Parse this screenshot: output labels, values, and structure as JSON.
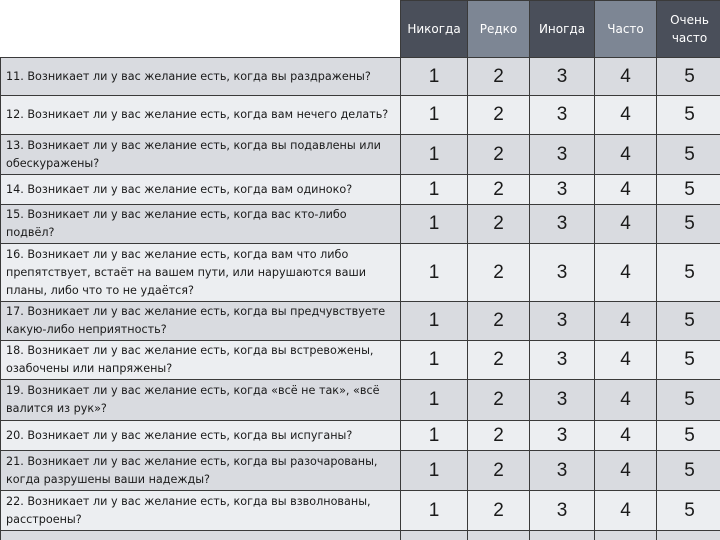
{
  "header": {
    "columns": [
      "Никогда",
      "Редко",
      "Иногда",
      "Часто",
      "Очень часто"
    ]
  },
  "rows": [
    {
      "question": "11. Возникает ли у вас желание есть, когда вы раздражены?",
      "values": [
        "1",
        "2",
        "3",
        "4",
        "5"
      ]
    },
    {
      "question": "12. Возникает ли у вас желание есть, когда вам нечего делать?",
      "values": [
        "1",
        "2",
        "3",
        "4",
        "5"
      ]
    },
    {
      "question": "13. Возникает ли у вас желание есть, когда вы подавлены или обескуражены?",
      "values": [
        "1",
        "2",
        "3",
        "4",
        "5"
      ]
    },
    {
      "question": "14. Возникает ли у вас желание есть, когда вам одиноко?",
      "values": [
        "1",
        "2",
        "3",
        "4",
        "5"
      ]
    },
    {
      "question": "15. Возникает ли у вас желание есть, когда вас кто-либо подвёл?",
      "values": [
        "1",
        "2",
        "3",
        "4",
        "5"
      ]
    },
    {
      "question": "16. Возникает ли у вас желание есть, когда вам что либо препятствует, встаёт на вашем пути, или нарушаются ваши планы, либо что то не удаётся?",
      "values": [
        "1",
        "2",
        "3",
        "4",
        "5"
      ]
    },
    {
      "question": "17. Возникает ли у вас желание есть, когда вы предчувствуете какую-либо неприятность?",
      "values": [
        "1",
        "2",
        "3",
        "4",
        "5"
      ]
    },
    {
      "question": "18. Возникает ли у вас желание есть, когда вы встревожены, озабочены или напряжены?",
      "values": [
        "1",
        "2",
        "3",
        "4",
        "5"
      ]
    },
    {
      "question": "19. Возникает ли у вас желание есть, когда «всё не так», «всё валится из рук»?",
      "values": [
        "1",
        "2",
        "3",
        "4",
        "5"
      ]
    },
    {
      "question": "20. Возникает ли у вас желание есть, когда вы испуганы?",
      "values": [
        "1",
        "2",
        "3",
        "4",
        "5"
      ]
    },
    {
      "question": "21. Возникает ли у вас желание есть, когда вы разочарованы, когда разрушены ваши надежды?",
      "values": [
        "1",
        "2",
        "3",
        "4",
        "5"
      ]
    },
    {
      "question": "22. Возникает ли у вас желание есть, когда вы взволнованы, расстроены?",
      "values": [
        "1",
        "2",
        "3",
        "4",
        "5"
      ]
    }
  ]
}
